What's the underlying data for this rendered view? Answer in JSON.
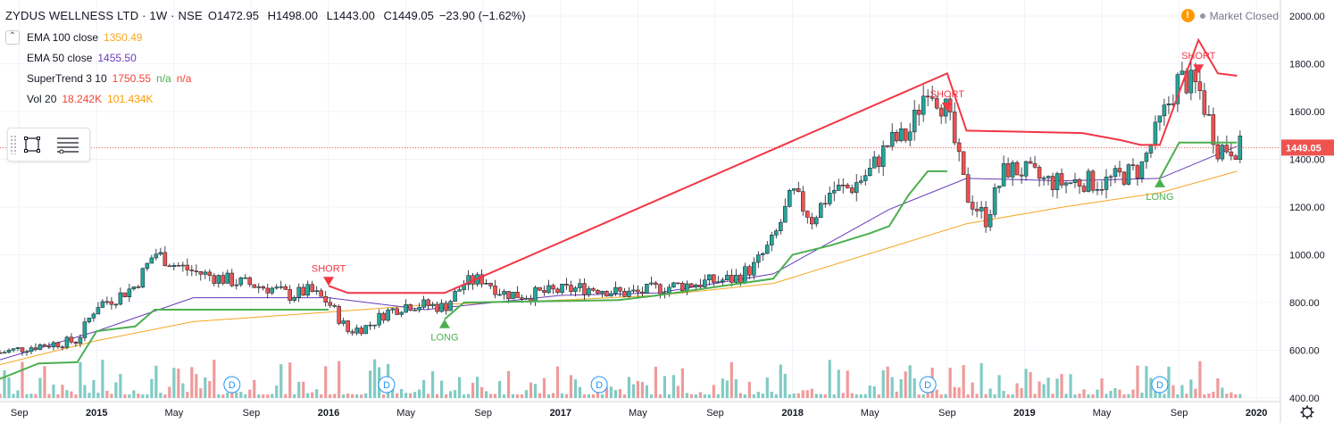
{
  "header": {
    "symbol": "ZYDUS WELLNESS LTD · 1W · NSE",
    "open": "O1472.95",
    "high": "H1498.00",
    "low": "L1443.00",
    "close": "C1449.05",
    "change": "−23.90 (−1.62%)"
  },
  "indicators": [
    {
      "name": "EMA 100 close",
      "value": "1350.49",
      "color": "#f5a623"
    },
    {
      "name": "EMA 50 close",
      "value": "1455.50",
      "color": "#673ab7"
    },
    {
      "name": "SuperTrend 3 10",
      "value": "1750.55",
      "value2": "n/a",
      "value3": "n/a",
      "color": "#f44336",
      "color2": "#4caf50"
    },
    {
      "name": "Vol 20",
      "value": "18.242K",
      "value2": "101.434K",
      "color": "#f44336",
      "color2": "#ff9800"
    }
  ],
  "market_status": "Market Closed",
  "last_price_label": "1449.05",
  "colors": {
    "up": "#26a69a",
    "down": "#ef5350",
    "ema100": "#f5a623",
    "ema50": "#673ab7",
    "st_up": "#4caf50",
    "st_down": "#f23645",
    "vol_up": "#80cbc4",
    "vol_down": "#ef9a9a",
    "price_tag": "#ef5350"
  },
  "chart_data": {
    "type": "candlestick",
    "title": "ZYDUS WELLNESS LTD · 1W · NSE",
    "y_ticks": [
      "2000.00",
      "1800.00",
      "1600.00",
      "1400.00",
      "1200.00",
      "1000.00",
      "800.00",
      "600.00",
      "400.00"
    ],
    "ylim": [
      400,
      2000
    ],
    "x_ticks": [
      "Sep",
      "2015",
      "May",
      "Sep",
      "2016",
      "May",
      "Sep",
      "2017",
      "May",
      "Sep",
      "2018",
      "May",
      "Sep",
      "2019",
      "May",
      "Sep",
      "2020"
    ],
    "price_path": [
      [
        "2014-08",
        590
      ],
      [
        "2014-10",
        620
      ],
      [
        "2014-12",
        640
      ],
      [
        "2015-01",
        790
      ],
      [
        "2015-02",
        820
      ],
      [
        "2015-03",
        870
      ],
      [
        "2015-04",
        1010
      ],
      [
        "2015-05",
        960
      ],
      [
        "2015-06",
        930
      ],
      [
        "2015-07",
        910
      ],
      [
        "2015-08",
        890
      ],
      [
        "2015-10",
        860
      ],
      [
        "2015-11",
        830
      ],
      [
        "2015-12",
        850
      ],
      [
        "2016-01",
        800
      ],
      [
        "2016-02",
        680
      ],
      [
        "2016-03",
        700
      ],
      [
        "2016-04",
        760
      ],
      [
        "2016-05",
        790
      ],
      [
        "2016-06",
        790
      ],
      [
        "2016-07",
        780
      ],
      [
        "2016-08",
        880
      ],
      [
        "2016-09",
        900
      ],
      [
        "2016-10",
        840
      ],
      [
        "2016-11",
        830
      ],
      [
        "2016-12",
        840
      ],
      [
        "2017-01",
        850
      ],
      [
        "2017-02",
        860
      ],
      [
        "2017-03",
        860
      ],
      [
        "2017-04",
        840
      ],
      [
        "2017-05",
        840
      ],
      [
        "2017-06",
        860
      ],
      [
        "2017-07",
        870
      ],
      [
        "2017-08",
        880
      ],
      [
        "2017-09",
        890
      ],
      [
        "2017-10",
        900
      ],
      [
        "2017-11",
        950
      ],
      [
        "2017-12",
        1060
      ],
      [
        "2018-01",
        1260
      ],
      [
        "2018-02",
        1150
      ],
      [
        "2018-03",
        1270
      ],
      [
        "2018-04",
        1280
      ],
      [
        "2018-05",
        1350
      ],
      [
        "2018-06",
        1470
      ],
      [
        "2018-07",
        1500
      ],
      [
        "2018-08",
        1720
      ],
      [
        "2018-09",
        1600
      ],
      [
        "2018-10",
        1250
      ],
      [
        "2018-11",
        1150
      ],
      [
        "2018-12",
        1360
      ],
      [
        "2019-01",
        1350
      ],
      [
        "2019-02",
        1310
      ],
      [
        "2019-03",
        1300
      ],
      [
        "2019-04",
        1310
      ],
      [
        "2019-05",
        1300
      ],
      [
        "2019-06",
        1330
      ],
      [
        "2019-07",
        1360
      ],
      [
        "2019-08",
        1550
      ],
      [
        "2019-09",
        1740
      ],
      [
        "2019-10",
        1700
      ],
      [
        "2019-11",
        1450
      ],
      [
        "2019-12",
        1449
      ]
    ],
    "ema100": [
      [
        "2014-08",
        540
      ],
      [
        "2015-01",
        640
      ],
      [
        "2015-06",
        720
      ],
      [
        "2016-01",
        760
      ],
      [
        "2016-06",
        790
      ],
      [
        "2017-01",
        810
      ],
      [
        "2017-06",
        830
      ],
      [
        "2017-12",
        880
      ],
      [
        "2018-06",
        1030
      ],
      [
        "2018-10",
        1130
      ],
      [
        "2019-03",
        1200
      ],
      [
        "2019-08",
        1260
      ],
      [
        "2019-12",
        1350
      ]
    ],
    "ema50": [
      [
        "2014-08",
        560
      ],
      [
        "2015-01",
        680
      ],
      [
        "2015-06",
        820
      ],
      [
        "2016-01",
        820
      ],
      [
        "2016-06",
        770
      ],
      [
        "2017-01",
        830
      ],
      [
        "2017-06",
        840
      ],
      [
        "2017-12",
        920
      ],
      [
        "2018-06",
        1190
      ],
      [
        "2018-10",
        1320
      ],
      [
        "2019-03",
        1310
      ],
      [
        "2019-08",
        1320
      ],
      [
        "2019-12",
        1455
      ]
    ],
    "supertrend_long": [
      [
        "2014-08",
        480
      ],
      [
        "2014-10",
        545
      ],
      [
        "2014-12",
        550
      ],
      [
        "2015-01",
        680
      ],
      [
        "2015-03",
        700
      ],
      [
        "2015-04",
        770
      ],
      [
        "2016-01",
        770
      ],
      [
        "2016-02",
        null
      ],
      [
        "2016-07",
        730
      ],
      [
        "2016-08",
        800
      ],
      [
        "2017-04",
        810
      ],
      [
        "2017-06",
        830
      ],
      [
        "2017-12",
        900
      ],
      [
        "2018-01",
        1000
      ],
      [
        "2018-03",
        1040
      ],
      [
        "2018-05",
        1090
      ],
      [
        "2018-06",
        1120
      ],
      [
        "2018-07",
        1250
      ],
      [
        "2018-08",
        1350
      ],
      [
        "2018-09",
        1350
      ],
      [
        "2018-10",
        null
      ],
      [
        "2019-08",
        1320
      ],
      [
        "2019-09",
        1470
      ],
      [
        "2019-12",
        1470
      ]
    ],
    "supertrend_short": [
      [
        "2016-01",
        870
      ],
      [
        "2016-02",
        840
      ],
      [
        "2016-07",
        840
      ],
      [
        "2018-09",
        1760
      ],
      [
        "2018-10",
        1520
      ],
      [
        "2019-04",
        1510
      ],
      [
        "2019-06",
        1480
      ],
      [
        "2019-07",
        1460
      ],
      [
        "2019-08",
        1460
      ],
      [
        "2019-10",
        1900
      ],
      [
        "2019-11",
        1760
      ],
      [
        "2019-12",
        1750
      ]
    ],
    "signals": [
      {
        "label": "SHORT",
        "date": "2016-01",
        "price": 870,
        "dir": "short"
      },
      {
        "label": "LONG",
        "date": "2016-07",
        "price": 730,
        "dir": "long"
      },
      {
        "label": "SHORT",
        "date": "2018-09",
        "price": 1600,
        "dir": "short"
      },
      {
        "label": "LONG",
        "date": "2019-08",
        "price": 1320,
        "dir": "long"
      },
      {
        "label": "SHORT",
        "date": "2019-10",
        "price": 1760,
        "dir": "short"
      }
    ],
    "dividends": [
      {
        "label": "D",
        "date": "2015-08"
      },
      {
        "label": "D",
        "date": "2016-04"
      },
      {
        "label": "D",
        "date": "2017-03"
      },
      {
        "label": "D",
        "date": "2018-08"
      },
      {
        "label": "D",
        "date": "2019-08"
      }
    ]
  }
}
